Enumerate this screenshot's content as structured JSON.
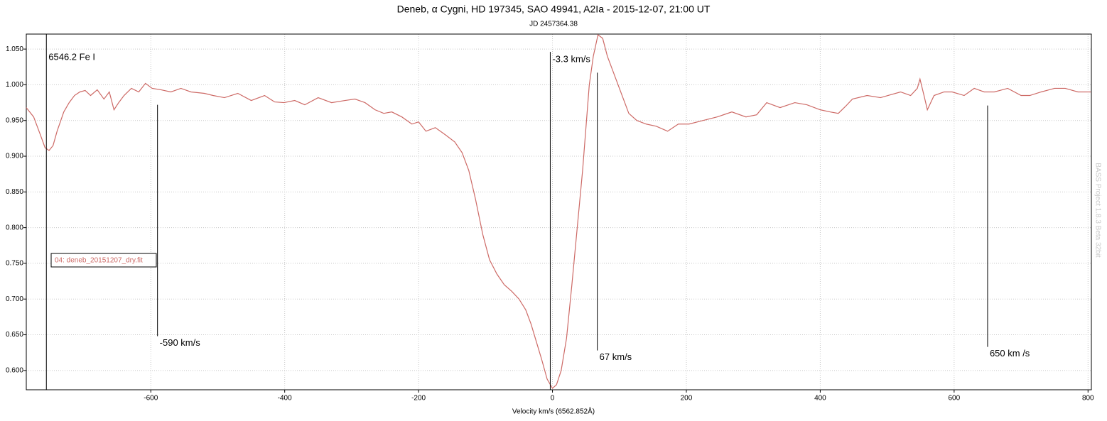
{
  "chart_data": {
    "type": "line",
    "title": "Deneb, α Cygni, HD 197345, SAO 49941, A2Ia - 2015-12-07, 21:00 UT",
    "subtitle": "JD 2457364.38",
    "xlabel": "Velocity km/s (6562.852Å)",
    "watermark": "BASS Project 1.8.3 Beta 32bit",
    "xlim": [
      -786,
      805
    ],
    "ylim": [
      0.573,
      1.071
    ],
    "xticks": [
      -600,
      -400,
      -200,
      0,
      200,
      400,
      600,
      800
    ],
    "yticks": [
      {
        "value": 0.6,
        "label": "0.600"
      },
      {
        "value": 0.65,
        "label": "0.650"
      },
      {
        "value": 0.7,
        "label": "0.700"
      },
      {
        "value": 0.75,
        "label": "0.750"
      },
      {
        "value": 0.8,
        "label": "0.800"
      },
      {
        "value": 0.85,
        "label": "0.850"
      },
      {
        "value": 0.9,
        "label": "0.900"
      },
      {
        "value": 0.95,
        "label": "0.950"
      },
      {
        "value": 1.0,
        "label": "1.000"
      },
      {
        "value": 1.05,
        "label": "1.050"
      }
    ],
    "grid": true,
    "legend": "left",
    "x": [
      -786,
      -775,
      -765,
      -758,
      -752,
      -746,
      -740,
      -730,
      -722,
      -714,
      -706,
      -698,
      -690,
      -680,
      -670,
      -662,
      -655,
      -648,
      -640,
      -629,
      -618,
      -608,
      -598,
      -585,
      -570,
      -555,
      -540,
      -520,
      -507,
      -490,
      -470,
      -450,
      -430,
      -415,
      -401,
      -385,
      -370,
      -350,
      -330,
      -310,
      -295,
      -280,
      -265,
      -252,
      -240,
      -225,
      -210,
      -200,
      -189,
      -175,
      -160,
      -146,
      -135,
      -125,
      -115,
      -104,
      -94,
      -83,
      -72,
      -61,
      -50,
      -40,
      -32,
      -24,
      -16,
      -8,
      0,
      6,
      13,
      21,
      29,
      37,
      45,
      50,
      55,
      61,
      68,
      75,
      82,
      90,
      98,
      106,
      114,
      126,
      140,
      155,
      172,
      188,
      204,
      225,
      246,
      268,
      289,
      305,
      320,
      340,
      362,
      380,
      400,
      415,
      427,
      438,
      448,
      470,
      490,
      501,
      520,
      535,
      545,
      549,
      555,
      560,
      570,
      585,
      597,
      615,
      630,
      645,
      660,
      680,
      700,
      713,
      730,
      750,
      766,
      785,
      804
    ],
    "series": [
      {
        "name": "04: deneb_20151207_dry.fit",
        "color": "#cd6a66",
        "values": [
          0.968,
          0.955,
          0.93,
          0.912,
          0.908,
          0.915,
          0.935,
          0.962,
          0.975,
          0.985,
          0.99,
          0.992,
          0.985,
          0.993,
          0.98,
          0.99,
          0.965,
          0.975,
          0.985,
          0.995,
          0.99,
          1.002,
          0.995,
          0.993,
          0.99,
          0.995,
          0.99,
          0.988,
          0.985,
          0.982,
          0.988,
          0.978,
          0.985,
          0.976,
          0.975,
          0.978,
          0.972,
          0.982,
          0.975,
          0.978,
          0.98,
          0.975,
          0.965,
          0.96,
          0.962,
          0.955,
          0.945,
          0.948,
          0.935,
          0.94,
          0.93,
          0.92,
          0.905,
          0.88,
          0.84,
          0.79,
          0.755,
          0.735,
          0.72,
          0.711,
          0.7,
          0.685,
          0.665,
          0.64,
          0.615,
          0.588,
          0.575,
          0.58,
          0.6,
          0.645,
          0.72,
          0.8,
          0.88,
          0.94,
          1.0,
          1.04,
          1.07,
          1.065,
          1.04,
          1.02,
          1.0,
          0.98,
          0.96,
          0.95,
          0.945,
          0.942,
          0.935,
          0.945,
          0.945,
          0.95,
          0.955,
          0.962,
          0.955,
          0.958,
          0.975,
          0.968,
          0.975,
          0.972,
          0.965,
          0.962,
          0.96,
          0.97,
          0.98,
          0.985,
          0.982,
          0.985,
          0.99,
          0.985,
          0.995,
          1.008,
          0.985,
          0.965,
          0.985,
          0.99,
          0.99,
          0.985,
          0.995,
          0.99,
          0.99,
          0.995,
          0.985,
          0.985,
          0.99,
          0.995,
          0.995,
          0.99,
          0.99
        ]
      }
    ],
    "annotations": [
      {
        "text": "6546.2 Fe I",
        "x": -756
      },
      {
        "text": "-3.3 km/s",
        "x": -3.3,
        "y_top": 1.046
      },
      {
        "text": "-590 km/s",
        "x": -590,
        "y_top": 0.972,
        "y_bottom": 0.648
      },
      {
        "text": "67 km/s",
        "x": 67,
        "y_top": 1.017,
        "y_bottom": 0.628
      },
      {
        "text": "650 km /s",
        "x": 650,
        "y_top": 0.971,
        "y_bottom": 0.633
      }
    ]
  }
}
